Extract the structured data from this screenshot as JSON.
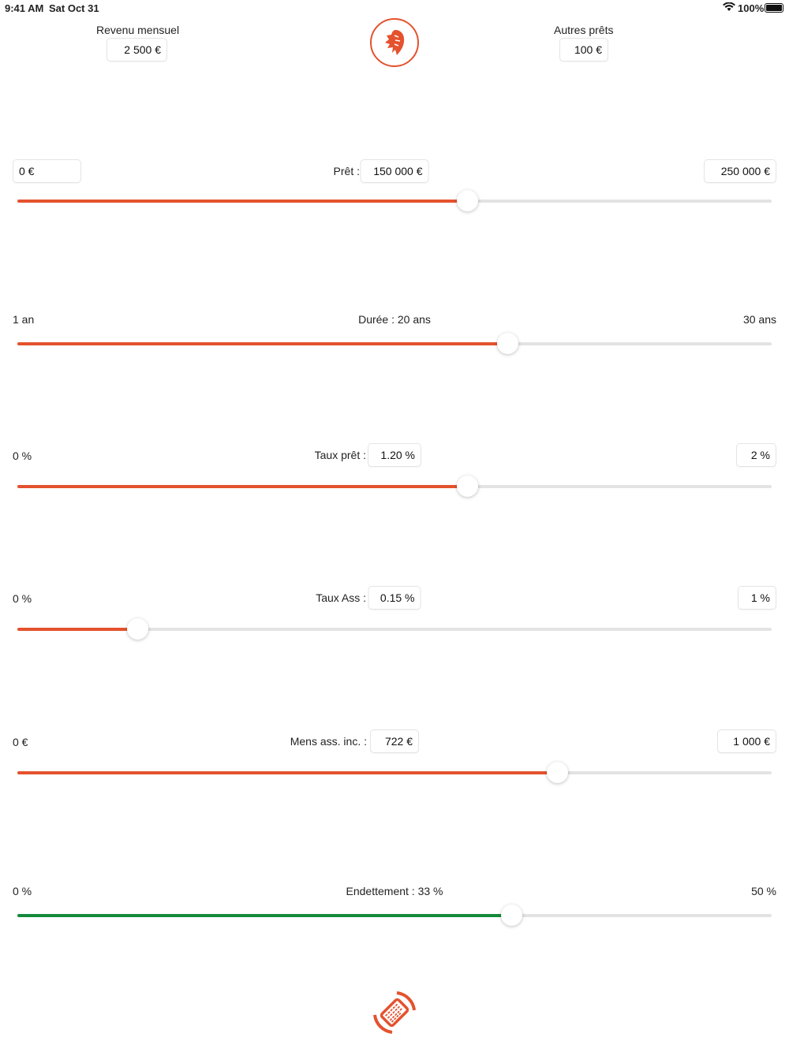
{
  "status_bar": {
    "time": "9:41 AM",
    "date": "Sat Oct 31",
    "battery": "100%"
  },
  "colors": {
    "accent": "#E4522E",
    "green": "#138A3B",
    "track": "#E3E3E3"
  },
  "header": {
    "income_label": "Revenu mensuel",
    "income_value": "2 500 €",
    "other_loans_label": "Autres prêts",
    "other_loans_value": "100 €",
    "logo_icon": "lion-icon"
  },
  "sliders": {
    "loan": {
      "min": "0 €",
      "label": "Prêt :",
      "value": "150 000 €",
      "max": "250 000 €",
      "fraction": 0.6
    },
    "duration": {
      "min": "1 an",
      "label": "Durée : 20 ans",
      "max": "30 ans",
      "fraction": 0.655
    },
    "rate": {
      "min": "0 %",
      "label": "Taux prêt :",
      "value": "1.20 %",
      "max": "2 %",
      "fraction": 0.6
    },
    "insurance": {
      "min": "0 %",
      "label": "Taux Ass :",
      "value": "0.15 %",
      "max": "1 %",
      "fraction": 0.15
    },
    "monthly": {
      "min": "0 €",
      "label": "Mens ass. inc. :",
      "value": "722 €",
      "max": "1 000 €",
      "fraction": 0.722
    },
    "debt": {
      "min": "0 %",
      "label": "Endettement : 33 %",
      "max": "50 %",
      "fraction": 0.66
    }
  },
  "footer": {
    "rotate_icon": "rotate-device-icon"
  }
}
